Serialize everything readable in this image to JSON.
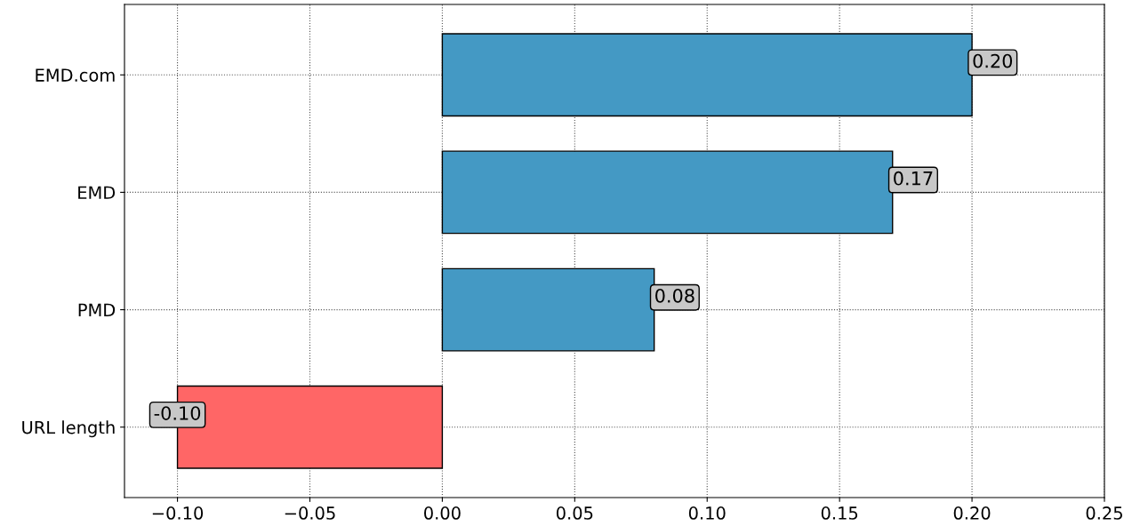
{
  "chart_data": {
    "type": "bar",
    "orientation": "horizontal",
    "categories": [
      "EMD.com",
      "EMD",
      "PMD",
      "URL length"
    ],
    "values": [
      0.2,
      0.17,
      0.08,
      -0.1
    ],
    "colors": [
      "#4499c4",
      "#4499c4",
      "#4499c4",
      "#ff6666"
    ],
    "value_labels": [
      "0.20",
      "0.17",
      "0.08",
      "-0.10"
    ],
    "xlim": [
      -0.12,
      0.25
    ],
    "xticks": [
      {
        "value": -0.1,
        "label": "−0.10"
      },
      {
        "value": -0.05,
        "label": "−0.05"
      },
      {
        "value": 0.0,
        "label": "0.00"
      },
      {
        "value": 0.05,
        "label": "0.05"
      },
      {
        "value": 0.1,
        "label": "0.10"
      },
      {
        "value": 0.15,
        "label": "0.15"
      },
      {
        "value": 0.2,
        "label": "0.20"
      },
      {
        "value": 0.25,
        "label": "0.25"
      }
    ],
    "grid": true
  }
}
